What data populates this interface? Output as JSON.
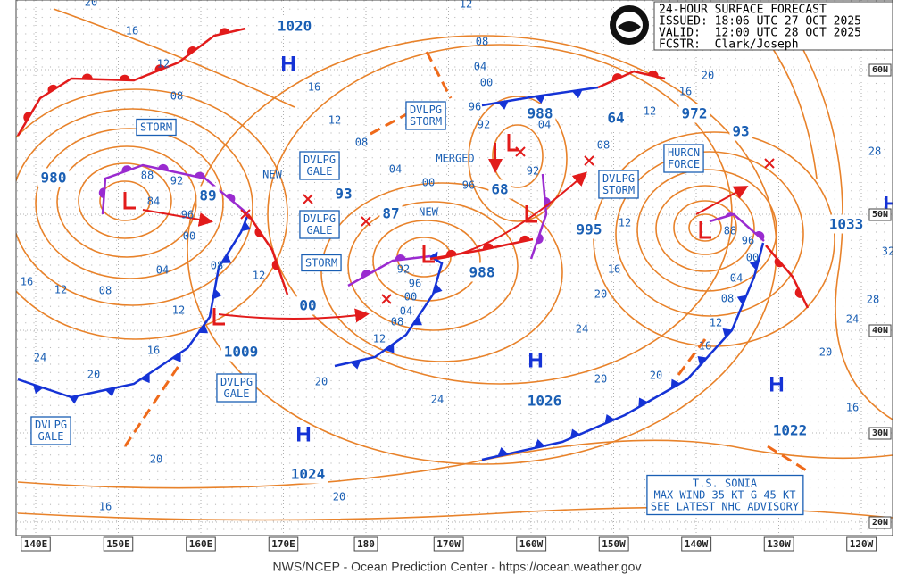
{
  "header": {
    "lines": [
      "24-HOUR SURFACE FORECAST",
      "ISSUED: 18:06 UTC 27 OCT 2025",
      "VALID:  12:00 UTC 28 OCT 2025",
      "FCSTR:  Clark/Joseph"
    ]
  },
  "footer": "NWS/NCEP - Ocean Prediction Center - https://ocean.weather.gov",
  "longitude_labels": [
    "140E",
    "150E",
    "160E",
    "170E",
    "180",
    "170W",
    "160W",
    "150W",
    "140W",
    "130W",
    "120W"
  ],
  "latitude_labels": [
    "60N",
    "50N",
    "40N",
    "30N",
    "20N"
  ],
  "boxed_labels": [
    {
      "lines": [
        "STORM"
      ]
    },
    {
      "lines": [
        "DVLPG",
        "GALE"
      ]
    },
    {
      "lines": [
        "DVLPG",
        "GALE"
      ]
    },
    {
      "lines": [
        "STORM"
      ]
    },
    {
      "lines": [
        "DVLPG",
        "STORM"
      ]
    },
    {
      "lines": [
        "DVLPG",
        "STORM"
      ]
    },
    {
      "lines": [
        "HURCN",
        "FORCE"
      ]
    },
    {
      "lines": [
        "DVLPG",
        "GALE"
      ]
    },
    {
      "lines": [
        "DVLPG",
        "GALE"
      ]
    },
    {
      "lines": [
        "T.S. SONIA",
        "MAX WIND 35 KT G 45 KT",
        "SEE LATEST NHC ADVISORY"
      ]
    }
  ],
  "pressure_labels": [
    "1020",
    "980",
    "89",
    "93",
    "87",
    "00",
    "1009",
    "988",
    "64",
    "972",
    "93",
    "68",
    "995",
    "988",
    "1026",
    "1024",
    "1022",
    "1033"
  ],
  "notes": [
    "NEW",
    "NEW",
    "MERGED"
  ],
  "highs": [
    "H",
    "H",
    "H",
    "H",
    "H"
  ],
  "isobar_labels": [
    "20",
    "16",
    "12",
    "08",
    "88",
    "92",
    "84",
    "96",
    "00",
    "04",
    "08",
    "12",
    "16",
    "12",
    "08",
    "12",
    "16",
    "20",
    "24",
    "20",
    "16",
    "20",
    "20",
    "24",
    "12",
    "08",
    "04",
    "00",
    "96",
    "92",
    "04",
    "00",
    "16",
    "12",
    "08",
    "96",
    "92",
    "00",
    "04",
    "08",
    "12",
    "04",
    "92",
    "96",
    "08",
    "12",
    "16",
    "20",
    "24",
    "20",
    "12",
    "16",
    "20",
    "88",
    "96",
    "00",
    "04",
    "08",
    "12",
    "16",
    "20",
    "24",
    "28",
    "32",
    "28",
    "20",
    "16"
  ]
}
